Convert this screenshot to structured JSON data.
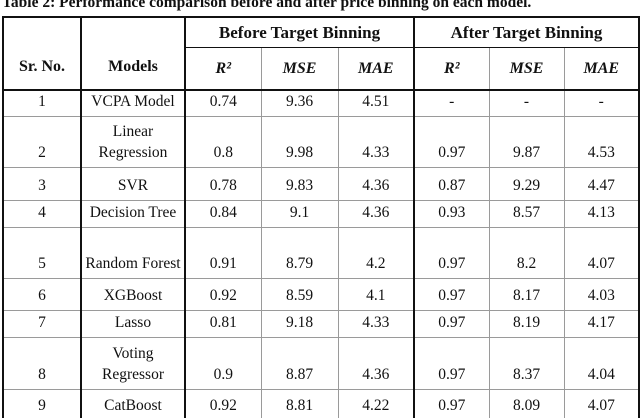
{
  "caption": "Table 2: Performance comparison before and after price binning on each model.",
  "colors": {
    "border_dark": "#111111",
    "grid_light": "#9a9a9a",
    "background": "#ffffff",
    "text": "#111111"
  },
  "table": {
    "header": {
      "sr_no": "Sr. No.",
      "models": "Models",
      "before_group": "Before Target Binning",
      "after_group": "After Target Binning",
      "metrics": [
        "R²",
        "MSE",
        "MAE"
      ]
    },
    "rows": [
      [
        "1",
        "VCPA Model",
        "0.74",
        "9.36",
        "4.51",
        "-",
        "-",
        "-"
      ],
      [
        "2",
        "Linear Regression",
        "0.8",
        "9.98",
        "4.33",
        "0.97",
        "9.87",
        "4.53"
      ],
      [
        "3",
        "SVR",
        "0.78",
        "9.83",
        "4.36",
        "0.87",
        "9.29",
        "4.47"
      ],
      [
        "4",
        "Decision Tree",
        "0.84",
        "9.1",
        "4.36",
        "0.93",
        "8.57",
        "4.13"
      ],
      [
        "5",
        "Random Forest",
        "0.91",
        "8.79",
        "4.2",
        "0.97",
        "8.2",
        "4.07"
      ],
      [
        "6",
        "XGBoost",
        "0.92",
        "8.59",
        "4.1",
        "0.97",
        "8.17",
        "4.03"
      ],
      [
        "7",
        "Lasso",
        "0.81",
        "9.18",
        "4.33",
        "0.97",
        "8.19",
        "4.17"
      ],
      [
        "8",
        "Voting Regressor",
        "0.9",
        "8.87",
        "4.36",
        "0.97",
        "8.37",
        "4.04"
      ],
      [
        "9",
        "CatBoost",
        "0.92",
        "8.81",
        "4.22",
        "0.97",
        "8.09",
        "4.07"
      ]
    ]
  },
  "chart_data": {
    "type": "table",
    "title": "Table 2: Performance comparison before and after price binning on each model.",
    "columns": [
      "Sr. No.",
      "Models",
      "Before R²",
      "Before MSE",
      "Before MAE",
      "After R²",
      "After MSE",
      "After MAE"
    ],
    "series": [
      {
        "name": "VCPA Model",
        "before": {
          "r2": 0.74,
          "mse": 9.36,
          "mae": 4.51
        },
        "after": {
          "r2": null,
          "mse": null,
          "mae": null
        }
      },
      {
        "name": "Linear Regression",
        "before": {
          "r2": 0.8,
          "mse": 9.98,
          "mae": 4.33
        },
        "after": {
          "r2": 0.97,
          "mse": 9.87,
          "mae": 4.53
        }
      },
      {
        "name": "SVR",
        "before": {
          "r2": 0.78,
          "mse": 9.83,
          "mae": 4.36
        },
        "after": {
          "r2": 0.87,
          "mse": 9.29,
          "mae": 4.47
        }
      },
      {
        "name": "Decision Tree",
        "before": {
          "r2": 0.84,
          "mse": 9.1,
          "mae": 4.36
        },
        "after": {
          "r2": 0.93,
          "mse": 8.57,
          "mae": 4.13
        }
      },
      {
        "name": "Random Forest",
        "before": {
          "r2": 0.91,
          "mse": 8.79,
          "mae": 4.2
        },
        "after": {
          "r2": 0.97,
          "mse": 8.2,
          "mae": 4.07
        }
      },
      {
        "name": "XGBoost",
        "before": {
          "r2": 0.92,
          "mse": 8.59,
          "mae": 4.1
        },
        "after": {
          "r2": 0.97,
          "mse": 8.17,
          "mae": 4.03
        }
      },
      {
        "name": "Lasso",
        "before": {
          "r2": 0.81,
          "mse": 9.18,
          "mae": 4.33
        },
        "after": {
          "r2": 0.97,
          "mse": 8.19,
          "mae": 4.17
        }
      },
      {
        "name": "Voting Regressor",
        "before": {
          "r2": 0.9,
          "mse": 8.87,
          "mae": 4.36
        },
        "after": {
          "r2": 0.97,
          "mse": 8.37,
          "mae": 4.04
        }
      },
      {
        "name": "CatBoost",
        "before": {
          "r2": 0.92,
          "mse": 8.81,
          "mae": 4.22
        },
        "after": {
          "r2": 0.97,
          "mse": 8.09,
          "mae": 4.07
        }
      }
    ]
  }
}
